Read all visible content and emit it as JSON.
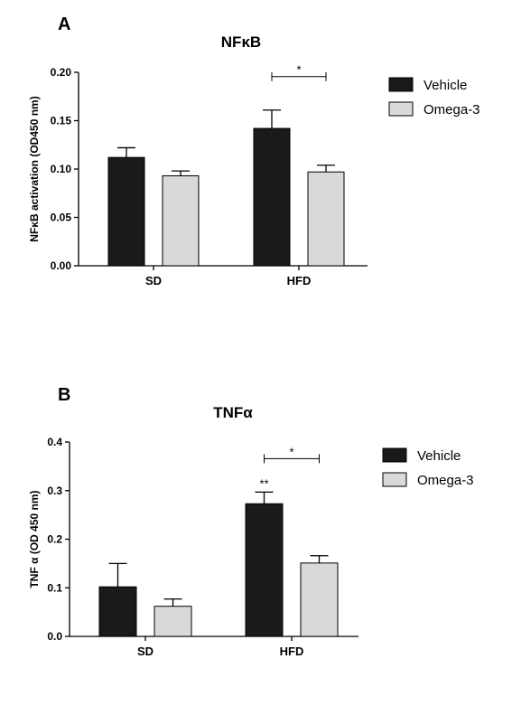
{
  "chart_data": [
    {
      "type": "bar",
      "panel": "A",
      "title": "NFκB",
      "ylabel": "NFκB activation (OD450 nm)",
      "xlabel": "",
      "ylim": [
        0,
        0.2
      ],
      "yticks": [
        0.0,
        0.05,
        0.1,
        0.15,
        0.2
      ],
      "ytick_labels": [
        "0.00",
        "0.05",
        "0.10",
        "0.15",
        "0.20"
      ],
      "categories": [
        "SD",
        "HFD"
      ],
      "series": [
        {
          "name": "Vehicle",
          "color": "#1a1a1a",
          "values": [
            0.112,
            0.142
          ],
          "errors": [
            0.01,
            0.019
          ]
        },
        {
          "name": "Omega-3",
          "color": "#d9d9d9",
          "values": [
            0.093,
            0.097
          ],
          "errors": [
            0.005,
            0.007
          ]
        }
      ],
      "annotations": [
        {
          "type": "bracket",
          "category": "HFD",
          "label": "*"
        }
      ],
      "legend": "top-right",
      "grid": false
    },
    {
      "type": "bar",
      "panel": "B",
      "title": "TNFα",
      "ylabel": "TNF α (OD 450 nm)",
      "xlabel": "",
      "ylim": [
        0,
        0.4
      ],
      "yticks": [
        0.0,
        0.1,
        0.2,
        0.3,
        0.4
      ],
      "ytick_labels": [
        "0.0",
        "0.1",
        "0.2",
        "0.3",
        "0.4"
      ],
      "categories": [
        "SD",
        "HFD"
      ],
      "series": [
        {
          "name": "Vehicle",
          "color": "#1a1a1a",
          "values": [
            0.102,
            0.273
          ],
          "errors": [
            0.048,
            0.024
          ]
        },
        {
          "name": "Omega-3",
          "color": "#d9d9d9",
          "values": [
            0.062,
            0.151
          ],
          "errors": [
            0.015,
            0.015
          ]
        }
      ],
      "annotations": [
        {
          "type": "bracket",
          "category": "HFD",
          "label": "*"
        },
        {
          "type": "above-bar",
          "category": "HFD",
          "series": "Vehicle",
          "label": "**"
        }
      ],
      "legend": "top-right",
      "grid": false
    }
  ]
}
